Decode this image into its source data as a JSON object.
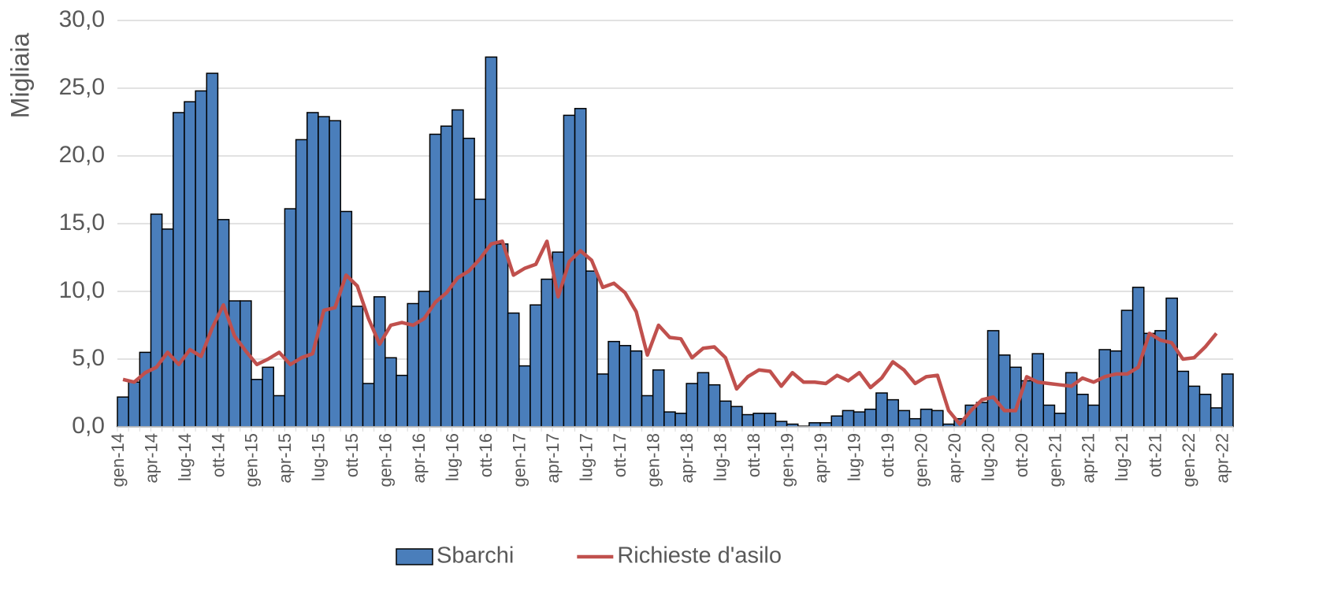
{
  "chart_data": {
    "type": "combo",
    "y_label": "Migliaia",
    "categories": [
      "gen-14",
      null,
      null,
      "apr-14",
      null,
      null,
      "lug-14",
      null,
      null,
      "ott-14",
      null,
      null,
      "gen-15",
      null,
      null,
      "apr-15",
      null,
      null,
      "lug-15",
      null,
      null,
      "ott-15",
      null,
      null,
      "gen-16",
      null,
      null,
      "apr-16",
      null,
      null,
      "lug-16",
      null,
      null,
      "ott-16",
      null,
      null,
      "gen-17",
      null,
      null,
      "apr-17",
      null,
      null,
      "lug-17",
      null,
      null,
      "ott-17",
      null,
      null,
      "gen-18",
      null,
      null,
      "apr-18",
      null,
      null,
      "lug-18",
      null,
      null,
      "ott-18",
      null,
      null,
      "gen-19",
      null,
      null,
      "apr-19",
      null,
      null,
      "lug-19",
      null,
      null,
      "ott-19",
      null,
      null,
      "gen-20",
      null,
      null,
      "apr-20",
      null,
      null,
      "lug-20",
      null,
      null,
      "ott-20",
      null,
      null,
      "gen-21",
      null,
      null,
      "apr-21",
      null,
      null,
      "lug-21",
      null,
      null,
      "ott-21",
      null,
      null,
      "gen-22",
      null,
      null,
      "apr-22"
    ],
    "series": [
      {
        "name": "Sbarchi",
        "type": "bar",
        "color": "#4a7ebb",
        "values": [
          2.2,
          3.3,
          5.5,
          15.7,
          14.6,
          23.2,
          24.0,
          24.8,
          26.1,
          15.3,
          9.3,
          9.3,
          3.5,
          4.4,
          2.3,
          16.1,
          21.2,
          23.2,
          22.9,
          22.6,
          15.9,
          8.9,
          3.2,
          9.6,
          5.1,
          3.8,
          9.1,
          10.0,
          21.6,
          22.2,
          23.4,
          21.3,
          16.8,
          27.3,
          13.5,
          8.4,
          4.5,
          9.0,
          10.9,
          12.9,
          23.0,
          23.5,
          11.5,
          3.9,
          6.3,
          6.0,
          5.6,
          2.3,
          4.2,
          1.1,
          1.0,
          3.2,
          4.0,
          3.1,
          1.9,
          1.5,
          0.9,
          1.0,
          1.0,
          0.4,
          0.2,
          0.05,
          0.3,
          0.3,
          0.8,
          1.2,
          1.1,
          1.3,
          2.5,
          2.0,
          1.2,
          0.6,
          1.3,
          1.2,
          0.2,
          0.6,
          1.6,
          1.8,
          7.1,
          5.3,
          4.4,
          3.4,
          5.4,
          1.6,
          1.0,
          4.0,
          2.4,
          1.6,
          5.7,
          5.6,
          8.6,
          10.3,
          6.9,
          7.1,
          9.5,
          4.1,
          3.0,
          2.4,
          1.4,
          3.9
        ]
      },
      {
        "name": "Richieste d'asilo",
        "type": "line",
        "color": "#c0504d",
        "values": [
          3.5,
          3.3,
          4.0,
          4.4,
          5.5,
          4.6,
          5.7,
          5.2,
          7.3,
          9.0,
          6.7,
          5.6,
          4.6,
          5.0,
          5.5,
          4.6,
          5.1,
          5.4,
          8.6,
          8.8,
          11.2,
          10.4,
          8.0,
          6.1,
          7.5,
          7.7,
          7.5,
          8.0,
          9.2,
          9.9,
          11.0,
          11.5,
          12.4,
          13.5,
          13.7,
          11.2,
          11.7,
          12.0,
          13.7,
          9.6,
          12.2,
          13.0,
          12.3,
          10.3,
          10.6,
          9.9,
          8.5,
          5.3,
          7.5,
          6.6,
          6.5,
          5.1,
          5.8,
          5.9,
          5.1,
          2.8,
          3.7,
          4.2,
          4.1,
          3.0,
          4.0,
          3.3,
          3.3,
          3.2,
          3.8,
          3.4,
          4.0,
          2.9,
          3.6,
          4.8,
          4.2,
          3.2,
          3.7,
          3.8,
          1.2,
          0.2,
          1.2,
          2.0,
          2.2,
          1.2,
          1.2,
          3.7,
          3.3,
          3.2,
          3.1,
          3.0,
          3.6,
          3.3,
          3.7,
          3.9,
          3.9,
          4.4,
          6.9,
          6.4,
          6.2,
          5.0,
          5.1,
          5.9,
          6.9,
          null
        ]
      }
    ],
    "ylim": [
      0,
      30
    ],
    "yticks": [
      {
        "value": 0,
        "label": "0,0"
      },
      {
        "value": 5,
        "label": "5,0"
      },
      {
        "value": 10,
        "label": "10,0"
      },
      {
        "value": 15,
        "label": "15,0"
      },
      {
        "value": 20,
        "label": "20,0"
      },
      {
        "value": 25,
        "label": "25,0"
      },
      {
        "value": 30,
        "label": "30,0"
      }
    ],
    "grid": true,
    "legend": "bottom"
  }
}
